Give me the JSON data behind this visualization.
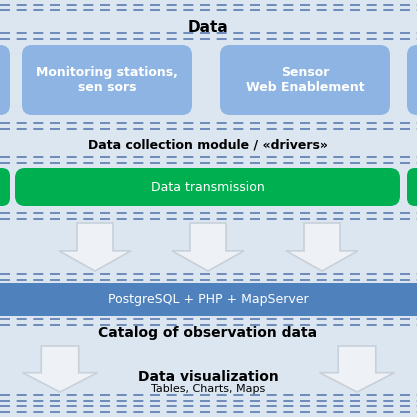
{
  "bg_color": "#dce6f1",
  "blue_box_color": "#8db4e2",
  "green_box_color": "#00b050",
  "stripe_bar_color": "#4f81bd",
  "dashed_color": "#5a7ab0",
  "arrow_face": "#f0f4f8",
  "arrow_edge": "#b0bec5",
  "title_data": "Data",
  "box1_text": "Monitoring stations,\nsen sors",
  "box2_text": "Sensor\nWeb Enablement",
  "label_collection": "Data collection module / «drivers»",
  "label_transmission": "Data transmission",
  "label_postgres": "PostgreSQL + PHP + MapServer",
  "label_catalog": "Catalog of observation data",
  "label_viz": "Data visualization",
  "label_viz_sub": "Tables, Charts, Maps"
}
